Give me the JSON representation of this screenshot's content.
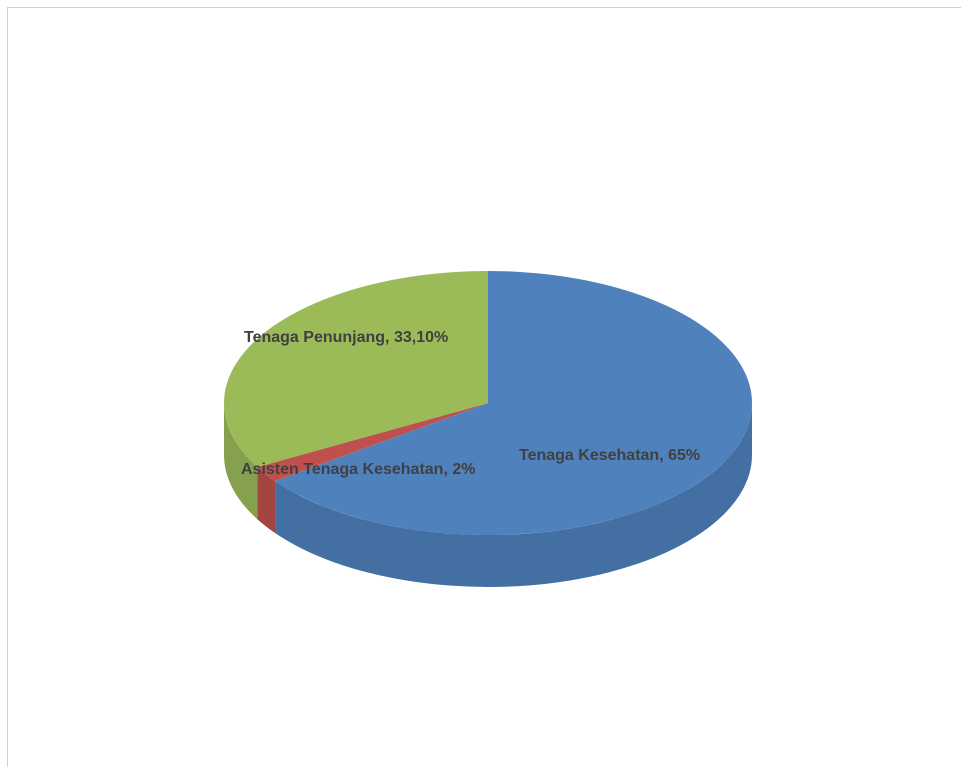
{
  "chart_data": {
    "type": "pie",
    "style": "3d",
    "title": "",
    "legend": "none",
    "slices": [
      {
        "category": "Tenaga Kesehatan",
        "value": 65,
        "label": "Tenaga Kesehatan, 65%",
        "color": "#4f81bd"
      },
      {
        "category": "Asisten Tenaga Kesehatan",
        "value": 2,
        "label": "Asisten Tenaga Kesehatan, 2%",
        "color": "#c0504d"
      },
      {
        "category": "Tenaga Penunjang",
        "value": 33.1,
        "label": "Tenaga Penunjang, 33,10%",
        "color": "#9bbb59"
      }
    ]
  }
}
